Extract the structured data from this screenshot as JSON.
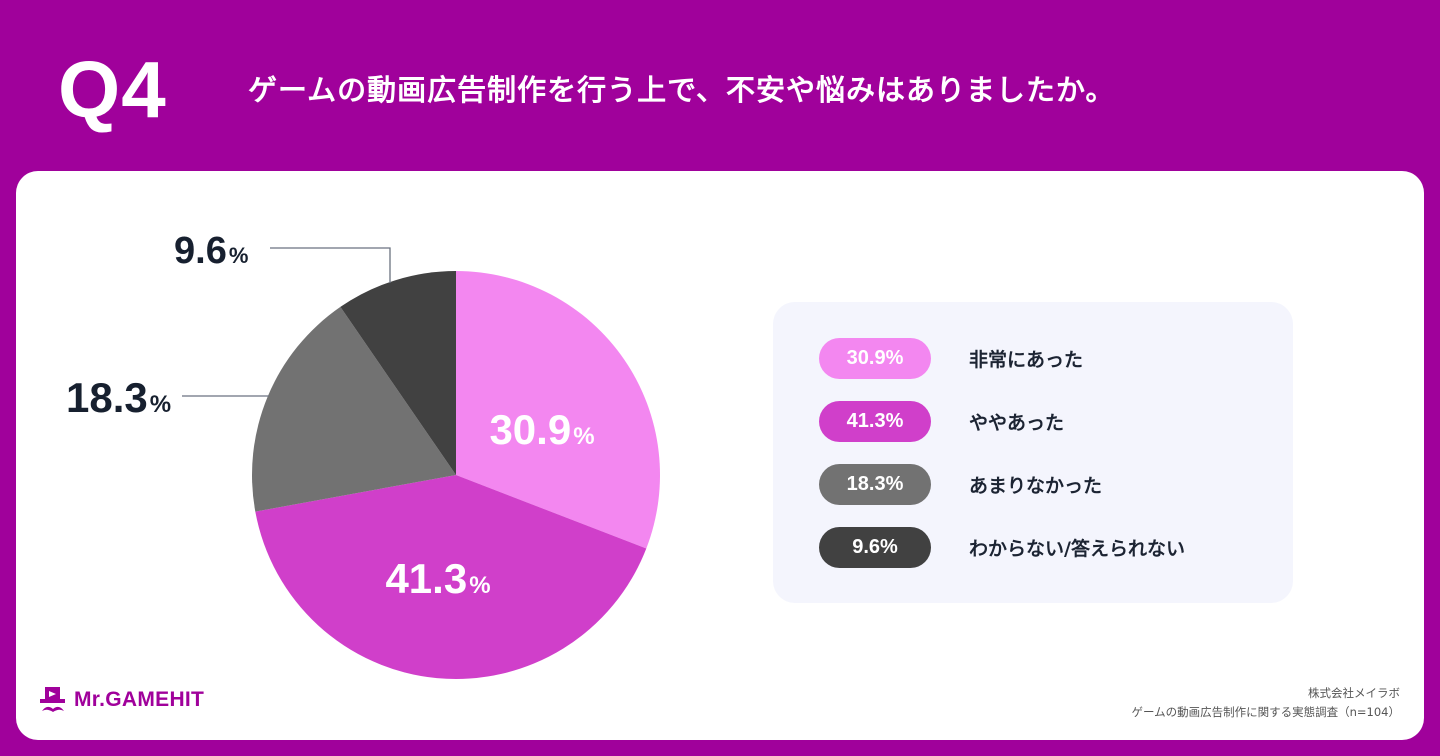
{
  "header": {
    "question_number": "Q4",
    "question_text": "ゲームの動画広告制作を行う上で、不安や悩みはありましたか。"
  },
  "colors": {
    "background": "#a0019b",
    "card": "#ffffff",
    "legend_panel": "#f4f5fd",
    "text_dark": "#17202f"
  },
  "chart_data": {
    "type": "pie",
    "title": "ゲームの動画広告制作を行う上で、不安や悩みはありましたか。",
    "start_angle": "12 o'clock",
    "direction": "clockwise",
    "categories": [
      "非常にあった",
      "ややあった",
      "あまりなかった",
      "わからない/答えられない"
    ],
    "values": [
      30.9,
      41.3,
      18.3,
      9.6
    ],
    "unit": "%",
    "colors": [
      "#f387f0",
      "#d03fca",
      "#727272",
      "#414141"
    ],
    "labels": [
      "30.9%",
      "41.3%",
      "18.3%",
      "9.6%"
    ],
    "label_positions": [
      "inside",
      "inside",
      "outside-left",
      "outside-top-left"
    ],
    "legend_position": "right",
    "sample_size": "n=104"
  },
  "pie": {
    "inside_labels": [
      {
        "value": "30.9",
        "unit": "%"
      },
      {
        "value": "41.3",
        "unit": "%"
      }
    ],
    "outside_labels": [
      {
        "value": "18.3",
        "unit": "%"
      },
      {
        "value": "9.6",
        "unit": "%"
      }
    ]
  },
  "legend": {
    "items": [
      {
        "pct": "30.9%",
        "label": "非常にあった",
        "color": "#f387f0"
      },
      {
        "pct": "41.3%",
        "label": "ややあった",
        "color": "#d03fca"
      },
      {
        "pct": "18.3%",
        "label": "あまりなかった",
        "color": "#727272"
      },
      {
        "pct": "9.6%",
        "label": "わからない/答えられない",
        "color": "#414141"
      }
    ]
  },
  "footer": {
    "logo_text": "Mr.GAMEHIT",
    "logo_icon": "top-hat-mustache-icon",
    "source_company": "株式会社メイラボ",
    "source_survey": "ゲームの動画広告制作に関する実態調査（n=104）"
  }
}
